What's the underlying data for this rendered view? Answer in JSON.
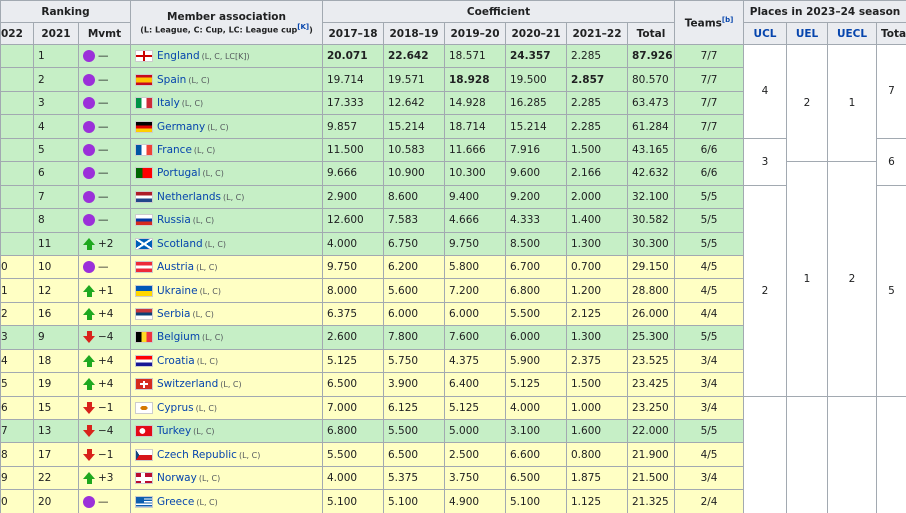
{
  "header": {
    "ranking": "Ranking",
    "member": "Member association",
    "note": "(L: League, C: Cup, LC: League cup",
    "note_ref": "[K]",
    "note_close": ")",
    "coefficient": "Coefficient",
    "teams": "Teams",
    "teams_ref": "[b]",
    "places": "Places in 2023–24 season",
    "columns": [
      "022",
      "2021",
      "Mvmt",
      "2017–18",
      "2018–19",
      "2019–20",
      "2020–21",
      "2021–22",
      "Total",
      "UCL",
      "UEL",
      "UECL",
      "Total"
    ]
  },
  "rows": [
    {
      "r21": 1,
      "mvmt": "—",
      "dir": "same",
      "country": "England",
      "tags": "(L, C, LC[K])",
      "c": [
        "20.071",
        "22.642",
        "18.571",
        "24.357",
        "2.285",
        "87.926"
      ],
      "bold": [
        0,
        1,
        3,
        5
      ],
      "teams": "7/7",
      "color": "green"
    },
    {
      "r21": 2,
      "mvmt": "—",
      "dir": "same",
      "country": "Spain",
      "tags": "(L, C)",
      "c": [
        "19.714",
        "19.571",
        "18.928",
        "19.500",
        "2.857",
        "80.570"
      ],
      "bold": [
        2,
        4
      ],
      "teams": "7/7",
      "color": "green"
    },
    {
      "r21": 3,
      "mvmt": "—",
      "dir": "same",
      "country": "Italy",
      "tags": "(L, C)",
      "c": [
        "17.333",
        "12.642",
        "14.928",
        "16.285",
        "2.285",
        "63.473"
      ],
      "bold": [],
      "teams": "7/7",
      "color": "green"
    },
    {
      "r21": 4,
      "mvmt": "—",
      "dir": "same",
      "country": "Germany",
      "tags": "(L, C)",
      "c": [
        "9.857",
        "15.214",
        "18.714",
        "15.214",
        "2.285",
        "61.284"
      ],
      "bold": [],
      "teams": "7/7",
      "color": "green"
    },
    {
      "r21": 5,
      "mvmt": "—",
      "dir": "same",
      "country": "France",
      "tags": "(L, C)",
      "c": [
        "11.500",
        "10.583",
        "11.666",
        "7.916",
        "1.500",
        "43.165"
      ],
      "bold": [],
      "teams": "6/6",
      "color": "green"
    },
    {
      "r21": 6,
      "mvmt": "—",
      "dir": "same",
      "country": "Portugal",
      "tags": "(L, C)",
      "c": [
        "9.666",
        "10.900",
        "10.300",
        "9.600",
        "2.166",
        "42.632"
      ],
      "bold": [],
      "teams": "6/6",
      "color": "green"
    },
    {
      "r21": 7,
      "mvmt": "—",
      "dir": "same",
      "country": "Netherlands",
      "tags": "(L, C)",
      "c": [
        "2.900",
        "8.600",
        "9.400",
        "9.200",
        "2.000",
        "32.100"
      ],
      "bold": [],
      "teams": "5/5",
      "color": "green"
    },
    {
      "r21": 8,
      "mvmt": "—",
      "dir": "same",
      "country": "Russia",
      "tags": "(L, C)",
      "c": [
        "12.600",
        "7.583",
        "4.666",
        "4.333",
        "1.400",
        "30.582"
      ],
      "bold": [],
      "teams": "5/5",
      "color": "green"
    },
    {
      "r21": 11,
      "mvmt": "+2",
      "dir": "up",
      "country": "Scotland",
      "tags": "(L, C)",
      "c": [
        "4.000",
        "6.750",
        "9.750",
        "8.500",
        "1.300",
        "30.300"
      ],
      "bold": [],
      "teams": "5/5",
      "color": "green"
    },
    {
      "r22": "0",
      "r21": 10,
      "mvmt": "—",
      "dir": "same",
      "country": "Austria",
      "tags": "(L, C)",
      "c": [
        "9.750",
        "6.200",
        "5.800",
        "6.700",
        "0.700",
        "29.150"
      ],
      "bold": [],
      "teams": "4/5",
      "color": "yellow"
    },
    {
      "r22": "1",
      "r21": 12,
      "mvmt": "+1",
      "dir": "up",
      "country": "Ukraine",
      "tags": "(L, C)",
      "c": [
        "8.000",
        "5.600",
        "7.200",
        "6.800",
        "1.200",
        "28.800"
      ],
      "bold": [],
      "teams": "4/5",
      "color": "yellow"
    },
    {
      "r22": "2",
      "r21": 16,
      "mvmt": "+4",
      "dir": "up",
      "country": "Serbia",
      "tags": "(L, C)",
      "c": [
        "6.375",
        "6.000",
        "6.000",
        "5.500",
        "2.125",
        "26.000"
      ],
      "bold": [],
      "teams": "4/4",
      "color": "yellow"
    },
    {
      "r22": "3",
      "r21": 9,
      "mvmt": "−4",
      "dir": "down",
      "country": "Belgium",
      "tags": "(L, C)",
      "c": [
        "2.600",
        "7.800",
        "7.600",
        "6.000",
        "1.300",
        "25.300"
      ],
      "bold": [],
      "teams": "5/5",
      "color": "green"
    },
    {
      "r22": "4",
      "r21": 18,
      "mvmt": "+4",
      "dir": "up",
      "country": "Croatia",
      "tags": "(L, C)",
      "c": [
        "5.125",
        "5.750",
        "4.375",
        "5.900",
        "2.375",
        "23.525"
      ],
      "bold": [],
      "teams": "3/4",
      "color": "yellow"
    },
    {
      "r22": "5",
      "r21": 19,
      "mvmt": "+4",
      "dir": "up",
      "country": "Switzerland",
      "tags": "(L, C)",
      "c": [
        "6.500",
        "3.900",
        "6.400",
        "5.125",
        "1.500",
        "23.425"
      ],
      "bold": [],
      "teams": "3/4",
      "color": "yellow"
    },
    {
      "r22": "6",
      "r21": 15,
      "mvmt": "−1",
      "dir": "down",
      "country": "Cyprus",
      "tags": "(L, C)",
      "c": [
        "7.000",
        "6.125",
        "5.125",
        "4.000",
        "1.000",
        "23.250"
      ],
      "bold": [],
      "teams": "3/4",
      "color": "yellow"
    },
    {
      "r22": "7",
      "r21": 13,
      "mvmt": "−4",
      "dir": "down",
      "country": "Turkey",
      "tags": "(L, C)",
      "c": [
        "6.800",
        "5.500",
        "5.000",
        "3.100",
        "1.600",
        "22.000"
      ],
      "bold": [],
      "teams": "5/5",
      "color": "green"
    },
    {
      "r22": "8",
      "r21": 17,
      "mvmt": "−1",
      "dir": "down",
      "country": "Czech Republic",
      "tags": "(L, C)",
      "c": [
        "5.500",
        "6.500",
        "2.500",
        "6.600",
        "0.800",
        "21.900"
      ],
      "bold": [],
      "teams": "4/5",
      "color": "yellow"
    },
    {
      "r22": "9",
      "r21": 22,
      "mvmt": "+3",
      "dir": "up",
      "country": "Norway",
      "tags": "(L, C)",
      "c": [
        "4.000",
        "5.375",
        "3.750",
        "6.500",
        "1.875",
        "21.500"
      ],
      "bold": [],
      "teams": "3/4",
      "color": "yellow"
    },
    {
      "r22": "0",
      "r21": 20,
      "mvmt": "—",
      "dir": "same",
      "country": "Greece",
      "tags": "(L, C)",
      "c": [
        "5.100",
        "5.100",
        "4.900",
        "5.100",
        "1.125",
        "21.325"
      ],
      "bold": [],
      "teams": "2/4",
      "color": "yellow"
    }
  ],
  "places": {
    "ucl": [
      4,
      3,
      2
    ],
    "uel": [
      2,
      1
    ],
    "uecl": [
      1,
      2
    ],
    "total": [
      7,
      6,
      5
    ]
  }
}
